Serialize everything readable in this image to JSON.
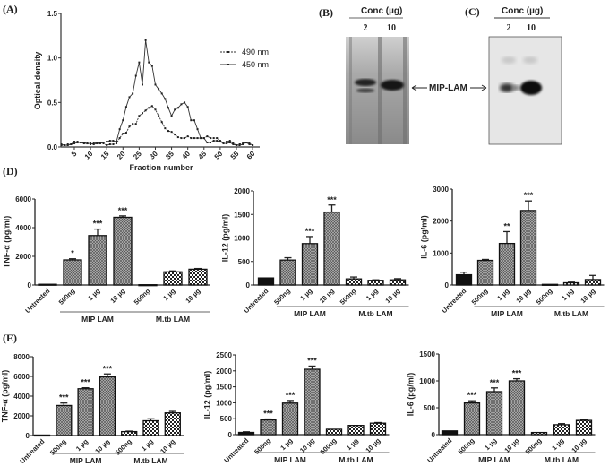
{
  "panel_labels": {
    "A": "(A)",
    "B": "(B)",
    "C": "(C)",
    "D": "(D)",
    "E": "(E)"
  },
  "gels": {
    "B": {
      "header": "Conc (µg)",
      "lanes": [
        "2",
        "10"
      ]
    },
    "C": {
      "header": "Conc (µg)",
      "lanes": [
        "2",
        "10"
      ]
    },
    "band_label": "MIP-LAM"
  },
  "chart_data": [
    {
      "type": "line",
      "xlabel": "Fraction number",
      "ylabel": "Optical density",
      "ylim": [
        0,
        1.5
      ],
      "yticks": [
        0,
        0.5,
        1.0,
        1.5
      ],
      "ytick_labels": [
        "0.0",
        "0.5",
        "1.0",
        "1.5"
      ],
      "xticks": [
        5,
        10,
        15,
        20,
        25,
        30,
        35,
        40,
        45,
        50,
        55,
        60
      ],
      "xtick_labels": [
        "5",
        "10",
        "15",
        "20",
        "25",
        "30",
        "35",
        "40",
        "45",
        "50",
        "55",
        "60"
      ],
      "x": [
        1,
        2,
        3,
        4,
        5,
        6,
        7,
        8,
        9,
        10,
        11,
        12,
        13,
        14,
        15,
        16,
        17,
        18,
        19,
        20,
        21,
        22,
        23,
        24,
        25,
        26,
        27,
        28,
        29,
        30,
        31,
        32,
        33,
        34,
        35,
        36,
        37,
        38,
        39,
        40,
        41,
        42,
        43,
        44,
        45,
        46,
        47,
        48,
        49,
        50,
        51,
        52,
        53,
        54,
        55,
        56,
        57,
        58,
        59,
        60
      ],
      "legend_position": "right",
      "series": [
        {
          "name": "490 nm",
          "values": [
            0.02,
            0.02,
            0.03,
            0.03,
            0.06,
            0.06,
            0.05,
            0.05,
            0.04,
            0.03,
            0.04,
            0.05,
            0.05,
            0.04,
            0.02,
            0.03,
            0.03,
            0.04,
            0.1,
            0.15,
            0.16,
            0.23,
            0.26,
            0.26,
            0.35,
            0.38,
            0.41,
            0.44,
            0.46,
            0.42,
            0.35,
            0.28,
            0.21,
            0.18,
            0.17,
            0.14,
            0.11,
            0.1,
            0.1,
            0.12,
            0.1,
            0.1,
            0.1,
            0.1,
            0.1,
            0.12,
            0.1,
            0.1,
            0.1,
            0.07,
            0.05,
            0.06,
            0.07,
            0.04,
            0.02,
            0.03,
            0.04,
            0.05,
            0.03,
            0.02
          ]
        },
        {
          "name": "450 nm",
          "values": [
            0.03,
            0.02,
            0.02,
            0.03,
            0.04,
            0.05,
            0.05,
            0.04,
            0.04,
            0.04,
            0.03,
            0.04,
            0.04,
            0.05,
            0.06,
            0.07,
            0.07,
            0.06,
            0.2,
            0.3,
            0.45,
            0.56,
            0.6,
            0.8,
            0.95,
            0.7,
            1.2,
            0.95,
            0.91,
            0.7,
            0.65,
            0.6,
            0.54,
            0.44,
            0.35,
            0.42,
            0.44,
            0.48,
            0.5,
            0.45,
            0.3,
            0.3,
            0.2,
            0.1,
            0.1,
            0.05,
            0.05,
            0.07,
            0.07,
            0.06,
            0.04,
            0.04,
            0.05,
            0.03,
            0.02,
            0.02,
            0.03,
            0.05,
            0.04,
            0.02
          ]
        }
      ]
    },
    {
      "type": "bar",
      "ylabel": "TNF-α (pg/ml)",
      "ylim": [
        0,
        6000
      ],
      "yticks": [
        0,
        2000,
        4000,
        6000
      ],
      "ytick_labels": [
        "0",
        "2000",
        "4000",
        "6000"
      ],
      "categories": [
        "Untreated",
        "500ng",
        "1 µg",
        "10 µg",
        "500ng",
        "1 µg",
        "10 µg"
      ],
      "values": [
        50,
        1750,
        3450,
        4720,
        20,
        920,
        1100
      ],
      "errors": [
        0,
        80,
        450,
        100,
        0,
        60,
        50
      ],
      "significance": [
        "",
        "*",
        "***",
        "***",
        "",
        "",
        ""
      ],
      "groups": [
        {
          "label": "MIP LAM",
          "from": 1,
          "to": 3
        },
        {
          "label": "M.tb LAM",
          "from": 4,
          "to": 6
        }
      ]
    },
    {
      "type": "bar",
      "ylabel": "IL-12 (pg/ml)",
      "ylim": [
        0,
        2000
      ],
      "yticks": [
        0,
        500,
        1000,
        1500,
        2000
      ],
      "ytick_labels": [
        "0",
        "500",
        "1000",
        "1500",
        "2000"
      ],
      "categories": [
        "Untreated",
        "500ng",
        "1 µg",
        "10 µg",
        "500ng",
        "1 µg",
        "10 µg"
      ],
      "values": [
        150,
        530,
        880,
        1550,
        130,
        100,
        110
      ],
      "errors": [
        0,
        50,
        150,
        150,
        40,
        10,
        25
      ],
      "significance": [
        "",
        "",
        "***",
        "***",
        "",
        "",
        ""
      ],
      "groups": [
        {
          "label": "MIP LAM",
          "from": 1,
          "to": 3
        },
        {
          "label": "M.tb LAM",
          "from": 4,
          "to": 6
        }
      ]
    },
    {
      "type": "bar",
      "ylabel": "IL-6 (pg/ml)",
      "ylim": [
        0,
        3000
      ],
      "yticks": [
        0,
        1000,
        2000,
        3000
      ],
      "ytick_labels": [
        "0",
        "1000",
        "2000",
        "3000"
      ],
      "categories": [
        "Untreated",
        "500ng",
        "1 µg",
        "10 µg",
        "500ng",
        "1 µg",
        "10 µg"
      ],
      "values": [
        320,
        770,
        1300,
        2330,
        20,
        70,
        170
      ],
      "errors": [
        80,
        30,
        370,
        300,
        0,
        20,
        130
      ],
      "significance": [
        "",
        "",
        "**",
        "***",
        "",
        "",
        ""
      ],
      "groups": [
        {
          "label": "MIP LAM",
          "from": 1,
          "to": 3
        },
        {
          "label": "M.tb LAM",
          "from": 4,
          "to": 6
        }
      ]
    },
    {
      "type": "bar",
      "ylabel": "TNF-α (pg/ml)",
      "ylim": [
        0,
        8000
      ],
      "yticks": [
        0,
        2000,
        4000,
        6000,
        8000
      ],
      "ytick_labels": [
        "0",
        "2000",
        "4000",
        "6000",
        "8000"
      ],
      "categories": [
        "Untreated",
        "500ng",
        "1 µg",
        "10 µg",
        "500ng",
        "1 µg",
        "10 µg"
      ],
      "values": [
        50,
        3050,
        4750,
        5950,
        400,
        1500,
        2300
      ],
      "errors": [
        0,
        250,
        100,
        300,
        50,
        200,
        150
      ],
      "significance": [
        "",
        "***",
        "***",
        "***",
        "",
        "",
        ""
      ],
      "groups": [
        {
          "label": "MIP LAM",
          "from": 1,
          "to": 3
        },
        {
          "label": "M.tb LAM",
          "from": 4,
          "to": 6
        }
      ]
    },
    {
      "type": "bar",
      "ylabel": "IL-12 (pg/ml)",
      "ylim": [
        0,
        2500
      ],
      "yticks": [
        0,
        500,
        1000,
        1500,
        2000,
        2500
      ],
      "ytick_labels": [
        "0",
        "500",
        "1000",
        "1500",
        "2000",
        "2500"
      ],
      "categories": [
        "Untreated",
        "500ng",
        "1 µg",
        "10 µg",
        "500ng",
        "1 µg",
        "10 µg"
      ],
      "values": [
        70,
        460,
        990,
        2050,
        170,
        290,
        360
      ],
      "errors": [
        20,
        30,
        80,
        100,
        0,
        0,
        20
      ],
      "significance": [
        "",
        "***",
        "***",
        "***",
        "",
        "",
        ""
      ],
      "groups": [
        {
          "label": "MIP LAM",
          "from": 1,
          "to": 3
        },
        {
          "label": "M.tb LAM",
          "from": 4,
          "to": 6
        }
      ]
    },
    {
      "type": "bar",
      "ylabel": "IL-6 (pg/ml)",
      "ylim": [
        0,
        1500
      ],
      "yticks": [
        0,
        500,
        1000,
        1500
      ],
      "ytick_labels": [
        "0",
        "500",
        "1000",
        "1500"
      ],
      "categories": [
        "Untreated",
        "500ng",
        "1 µg",
        "10 µg",
        "500ng",
        "1 µg",
        "10 µg"
      ],
      "values": [
        70,
        590,
        800,
        1000,
        40,
        185,
        265
      ],
      "errors": [
        0,
        40,
        70,
        40,
        0,
        20,
        10
      ],
      "significance": [
        "",
        "***",
        "***",
        "***",
        "",
        "",
        ""
      ],
      "groups": [
        {
          "label": "MIP LAM",
          "from": 1,
          "to": 3
        },
        {
          "label": "M.tb LAM",
          "from": 4,
          "to": 6
        }
      ]
    }
  ]
}
